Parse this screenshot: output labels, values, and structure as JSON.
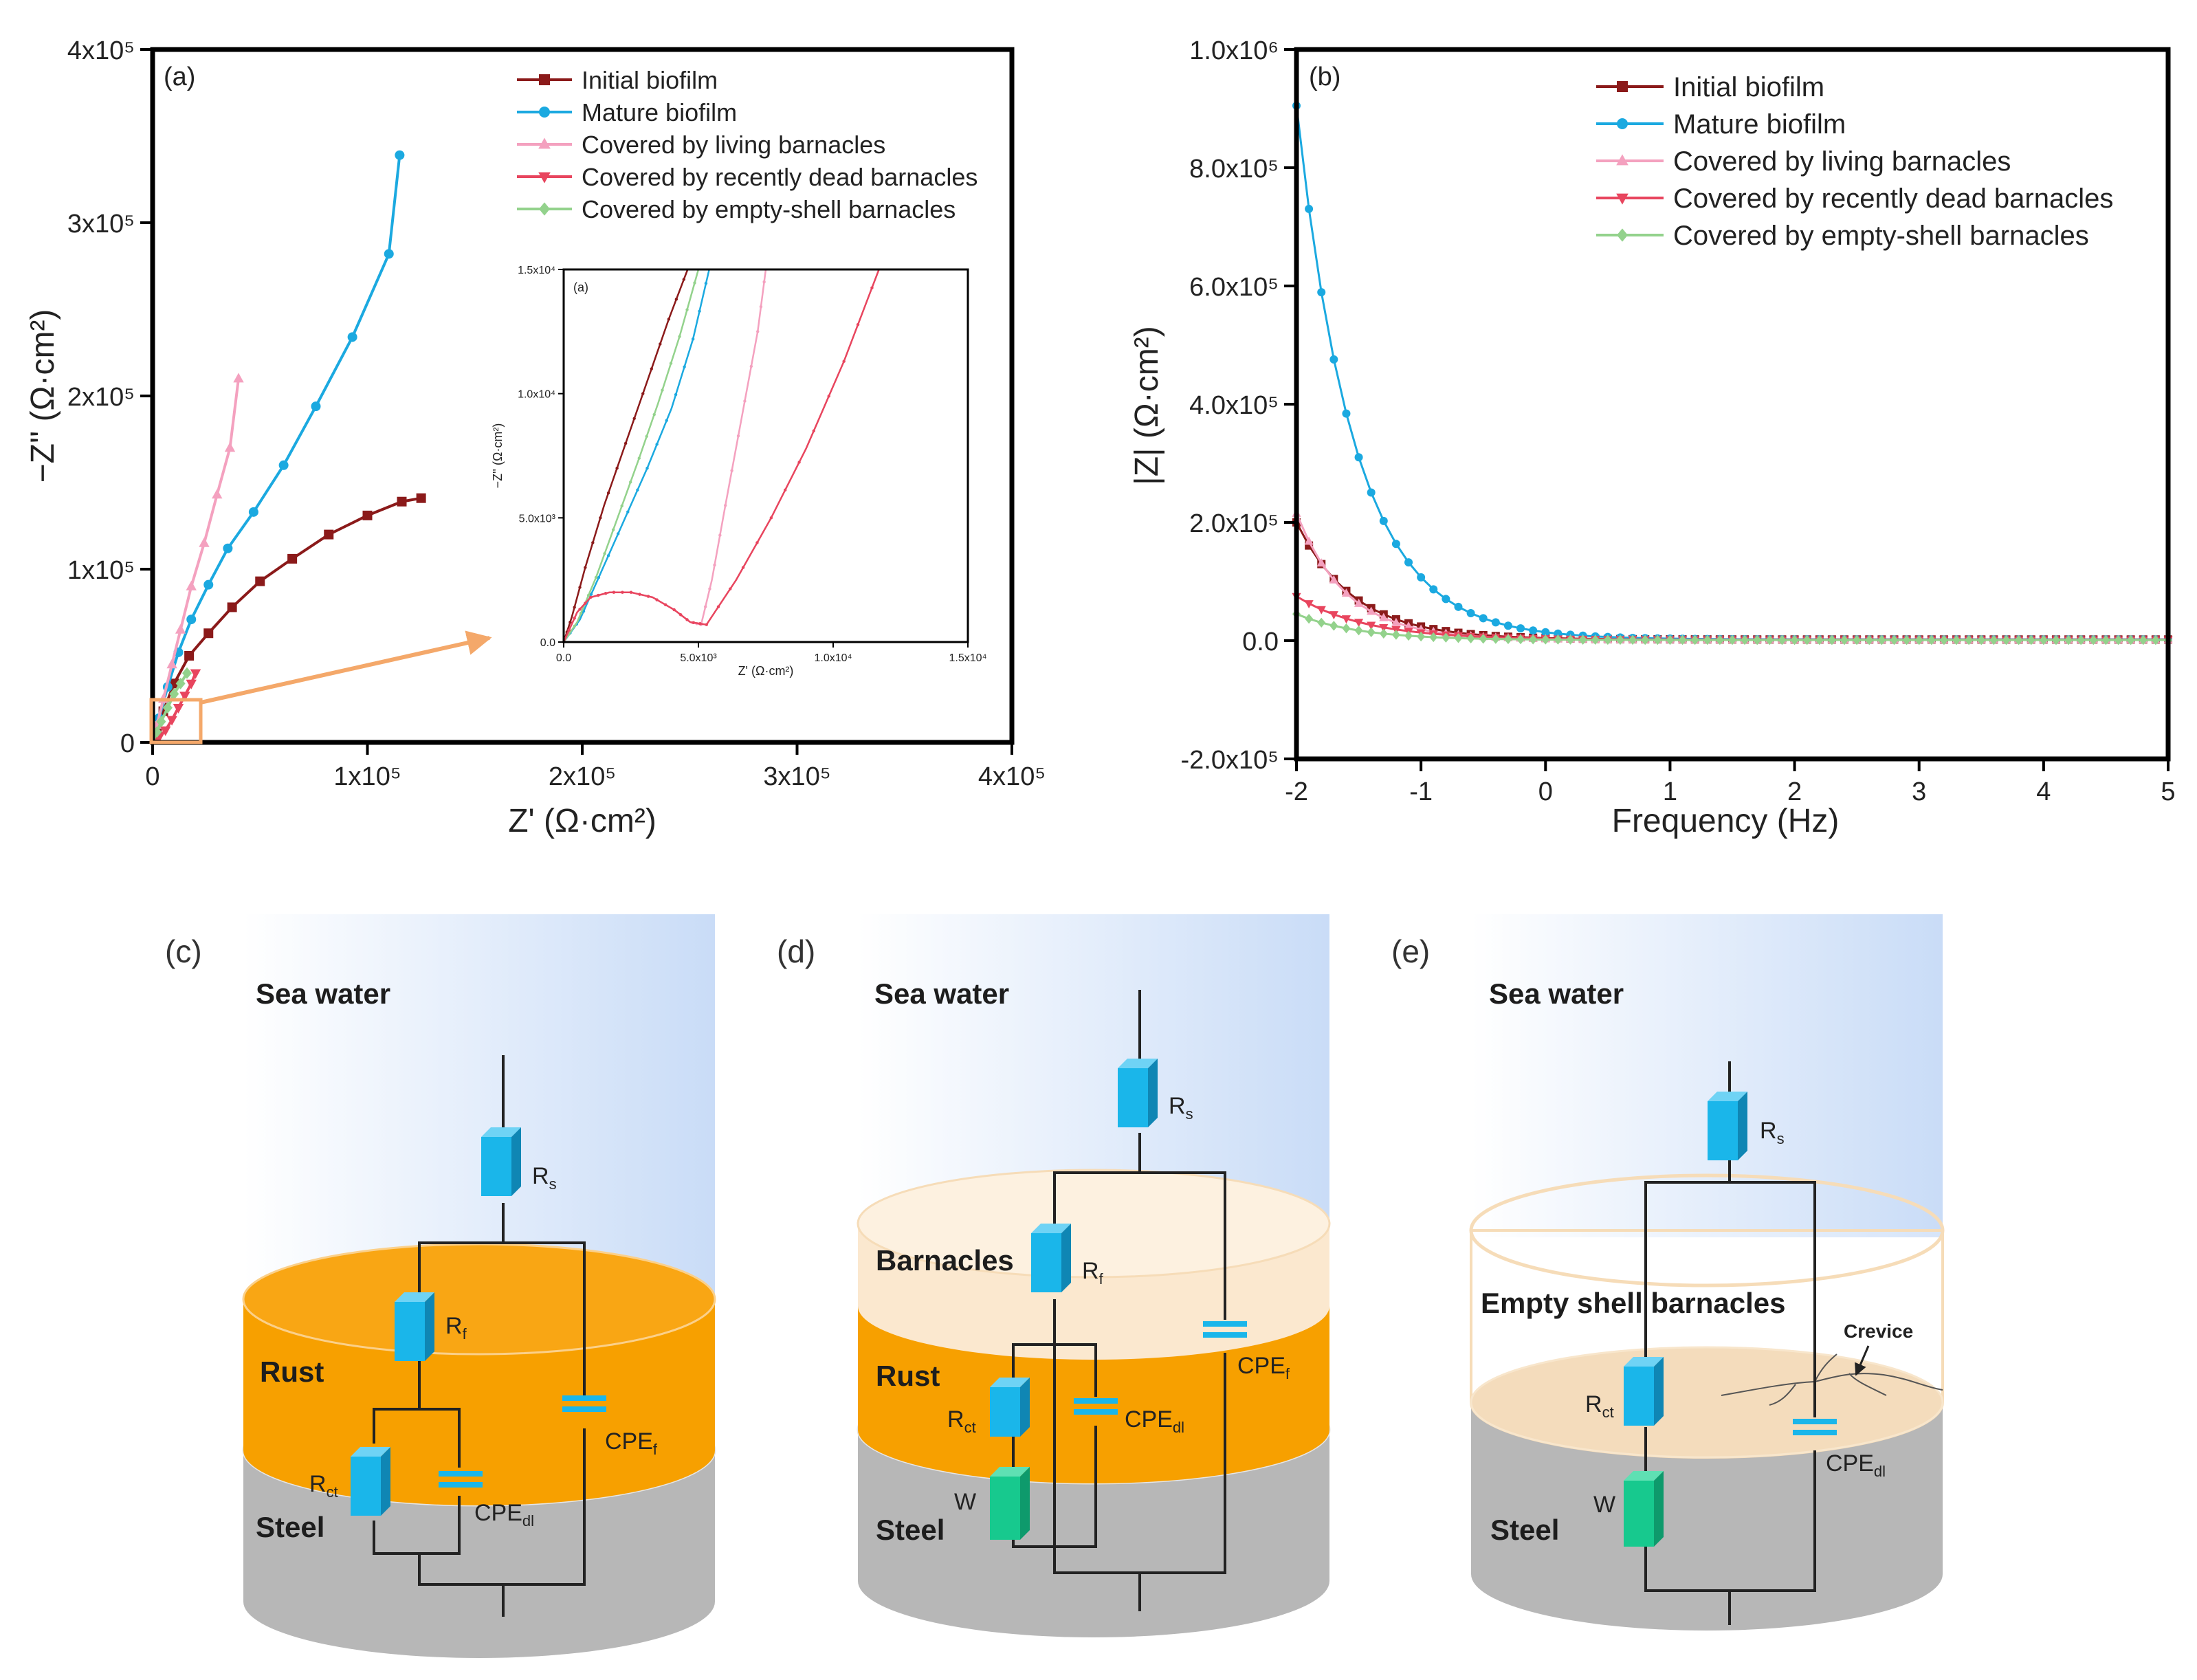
{
  "colors": {
    "initial": "#8b1a1a",
    "mature": "#1ba9e0",
    "living": "#f4a1bf",
    "recent": "#e8455e",
    "empty": "#93d28c",
    "rust": "#f7a000",
    "steel": "#b7b7b7",
    "barnacle": "#fbe8cf",
    "resistor": "#1ab6ea",
    "warburg": "#17c98e",
    "arrow": "#f4a86a"
  },
  "chart_data": [
    {
      "id": "a",
      "type": "line",
      "panel_label": "(a)",
      "xlabel": "Z' (Ω·cm²)",
      "ylabel": "−Z'' (Ω·cm²)",
      "xlim": [
        0,
        400000
      ],
      "ylim": [
        0,
        400000
      ],
      "xticks": [
        {
          "value": 0,
          "label": "0"
        },
        {
          "value": 100000,
          "label": "1x10⁵"
        },
        {
          "value": 200000,
          "label": "2x10⁵"
        },
        {
          "value": 300000,
          "label": "3x10⁵"
        },
        {
          "value": 400000,
          "label": "4x10⁵"
        }
      ],
      "yticks": [
        {
          "value": 0,
          "label": "0"
        },
        {
          "value": 100000,
          "label": "1x10⁵"
        },
        {
          "value": 200000,
          "label": "2x10⁵"
        },
        {
          "value": 300000,
          "label": "3x10⁵"
        },
        {
          "value": 400000,
          "label": "4x10⁵"
        }
      ],
      "legend": [
        "Initial biofilm",
        "Mature biofilm",
        "Covered by living barnacles",
        "Covered by recently dead barnacles",
        "Covered by empty-shell barnacles"
      ],
      "series": [
        {
          "name": "Initial biofilm",
          "color_key": "initial",
          "marker": "square",
          "x": [
            0,
            2000,
            5000,
            10000,
            17000,
            26000,
            37000,
            50000,
            65000,
            82000,
            100000,
            116000,
            125000
          ],
          "y": [
            0,
            8000,
            18000,
            34000,
            50000,
            63000,
            78000,
            93000,
            106000,
            120000,
            131000,
            139000,
            141000
          ]
        },
        {
          "name": "Mature biofilm",
          "color_key": "mature",
          "marker": "circle",
          "x": [
            0,
            3000,
            7000,
            12000,
            18000,
            26000,
            35000,
            47000,
            61000,
            76000,
            93000,
            110000,
            115000
          ],
          "y": [
            0,
            14000,
            32000,
            52000,
            71000,
            91000,
            112000,
            133000,
            160000,
            194000,
            234000,
            282000,
            339000
          ],
          "y_note": "x positions follow the curve"
        },
        {
          "name": "Covered by living barnacles",
          "color_key": "living",
          "marker": "triangle-up",
          "x": [
            0,
            2000,
            5000,
            9000,
            13000,
            18000,
            24000,
            30000,
            36000,
            40000
          ],
          "y": [
            0,
            10000,
            25000,
            45000,
            65000,
            90000,
            115000,
            143000,
            170000,
            210000
          ]
        },
        {
          "name": "Covered by recently dead barnacles",
          "color_key": "recent",
          "marker": "triangle-down",
          "x": [
            0,
            3000,
            6000,
            9000,
            12000,
            15000,
            18000,
            20000
          ],
          "y": [
            0,
            3000,
            7000,
            13000,
            20000,
            27000,
            34000,
            40000
          ]
        },
        {
          "name": "Covered by empty-shell barnacles",
          "color_key": "empty",
          "marker": "diamond",
          "x": [
            0,
            2000,
            4000,
            7000,
            10000,
            13000,
            16000
          ],
          "y": [
            0,
            6000,
            12000,
            20000,
            28000,
            34000,
            40000
          ]
        }
      ],
      "inset": {
        "panel_label": "(a)",
        "xlabel": "Z' (Ω·cm²)",
        "ylabel": "−Z'' (Ω·cm²)",
        "xlim": [
          0,
          15000
        ],
        "ylim": [
          0,
          15000
        ],
        "xticks": [
          {
            "value": 0,
            "label": "0.0"
          },
          {
            "value": 5000,
            "label": "5.0x10³"
          },
          {
            "value": 10000,
            "label": "1.0x10⁴"
          },
          {
            "value": 15000,
            "label": "1.5x10⁴"
          }
        ],
        "yticks": [
          {
            "value": 0,
            "label": "0.0"
          },
          {
            "value": 5000,
            "label": "5.0x10³"
          },
          {
            "value": 10000,
            "label": "1.0x10⁴"
          },
          {
            "value": 15000,
            "label": "1.5x10⁴"
          }
        ],
        "series": [
          {
            "name": "Initial biofilm",
            "color_key": "initial",
            "x": [
              0,
              300,
              800,
              1500,
              2300,
              3100,
              3900,
              4600
            ],
            "y": [
              0,
              1000,
              3000,
              5500,
              8000,
              10500,
              13000,
              15000
            ]
          },
          {
            "name": "Mature biofilm",
            "color_key": "mature",
            "x": [
              0,
              600,
              1300,
              2200,
              3100,
              4000,
              4800,
              5400
            ],
            "y": [
              0,
              900,
              2600,
              4800,
              7000,
              9400,
              12200,
              15000
            ]
          },
          {
            "name": "Covered by empty-shell barnacles",
            "color_key": "empty",
            "x": [
              0,
              500,
              1200,
              2000,
              2800,
              3500,
              4300,
              5000
            ],
            "y": [
              0,
              800,
              2600,
              5000,
              7400,
              9600,
              12300,
              15000
            ]
          },
          {
            "name": "Covered by living barnacles",
            "color_key": "living",
            "x": [
              0,
              500,
              1000,
              1700,
              2500,
              3300,
              4100,
              4700,
              5100,
              5500,
              6000,
              6600,
              7200,
              7500
            ],
            "y": [
              0,
              1200,
              1800,
              2000,
              2000,
              1800,
              1300,
              800,
              700,
              2500,
              5500,
              9000,
              12500,
              15000
            ]
          },
          {
            "name": "Covered by recently dead barnacles",
            "color_key": "recent",
            "x": [
              0,
              500,
              1000,
              1700,
              2500,
              3300,
              4100,
              4700,
              5300,
              6400,
              7700,
              9000,
              10400,
              11700
            ],
            "y": [
              0,
              1200,
              1800,
              2000,
              2000,
              1800,
              1300,
              800,
              700,
              2500,
              5000,
              7800,
              11300,
              15000
            ]
          }
        ]
      }
    },
    {
      "id": "b",
      "type": "line",
      "panel_label": "(b)",
      "xlabel": "Frequency (Hz)",
      "ylabel": "|Z| (Ω·cm²)",
      "xlim": [
        -2,
        5
      ],
      "ylim": [
        -200000,
        1000000
      ],
      "xticks": [
        {
          "value": -2,
          "label": "-2"
        },
        {
          "value": -1,
          "label": "-1"
        },
        {
          "value": 0,
          "label": "0"
        },
        {
          "value": 1,
          "label": "1"
        },
        {
          "value": 2,
          "label": "2"
        },
        {
          "value": 3,
          "label": "3"
        },
        {
          "value": 4,
          "label": "4"
        },
        {
          "value": 5,
          "label": "5"
        }
      ],
      "yticks": [
        {
          "value": -200000,
          "label": "-2.0x10⁵"
        },
        {
          "value": 0,
          "label": "0.0"
        },
        {
          "value": 200000,
          "label": "2.0x10⁵"
        },
        {
          "value": 400000,
          "label": "4.0x10⁵"
        },
        {
          "value": 600000,
          "label": "6.0x10⁵"
        },
        {
          "value": 800000,
          "label": "8.0x10⁵"
        },
        {
          "value": 1000000,
          "label": "1.0x10⁶"
        }
      ],
      "legend": [
        "Initial biofilm",
        "Mature biofilm",
        "Covered by living barnacles",
        "Covered by recently dead barnacles",
        "Covered by empty-shell barnacles"
      ],
      "series": [
        {
          "name": "Initial biofilm",
          "color_key": "initial",
          "marker": "square",
          "z0": 200000,
          "k": 2.2,
          "zinf": 2000
        },
        {
          "name": "Mature biofilm",
          "color_key": "mature",
          "marker": "circle",
          "z0": 905000,
          "k": 2.15,
          "zinf": 2000
        },
        {
          "name": "Covered by living barnacles",
          "color_key": "living",
          "marker": "triangle-up",
          "z0": 215000,
          "k": 2.5,
          "zinf": 1500
        },
        {
          "name": "Covered by recently dead barnacles",
          "color_key": "recent",
          "marker": "triangle-down",
          "z0": 75000,
          "k": 1.8,
          "zinf": 1500
        },
        {
          "name": "Covered by empty-shell barnacles",
          "color_key": "empty",
          "marker": "diamond",
          "z0": 45000,
          "k": 2.0,
          "zinf": 1000
        }
      ]
    }
  ],
  "diagrams": {
    "c": {
      "label": "(c)",
      "sea": "Sea water",
      "rust": "Rust",
      "steel": "Steel",
      "rs": "R",
      "rs_sub": "s",
      "rf": "R",
      "rf_sub": "f",
      "rct": "R",
      "rct_sub": "ct",
      "cpef": "CPE",
      "cpef_sub": "f",
      "cpedl": "CPE",
      "cpedl_sub": "dl"
    },
    "d": {
      "label": "(d)",
      "sea": "Sea water",
      "barnacles": "Barnacles",
      "rust": "Rust",
      "steel": "Steel",
      "rs": "R",
      "rs_sub": "s",
      "rf": "R",
      "rf_sub": "f",
      "rct": "R",
      "rct_sub": "ct",
      "cpef": "CPE",
      "cpef_sub": "f",
      "cpedl": "CPE",
      "cpedl_sub": "dl",
      "w": "W"
    },
    "e": {
      "label": "(e)",
      "sea": "Sea water",
      "barnacles": "Empty shell barnacles",
      "steel": "Steel",
      "crevice": "Crevice",
      "rs": "R",
      "rs_sub": "s",
      "rct": "R",
      "rct_sub": "ct",
      "cpedl": "CPE",
      "cpedl_sub": "dl",
      "w": "W"
    }
  }
}
